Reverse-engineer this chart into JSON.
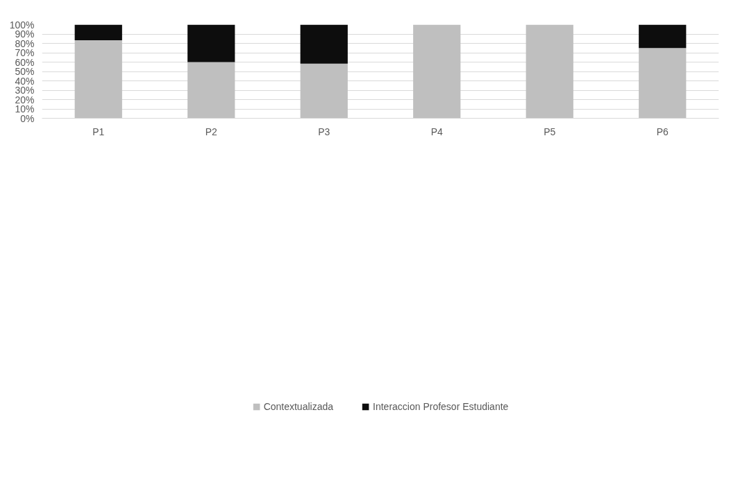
{
  "chart_data": {
    "type": "bar",
    "stacked": true,
    "categories": [
      "P1",
      "P2",
      "P3",
      "P4",
      "P5",
      "P6"
    ],
    "series": [
      {
        "name": "Contextualizada",
        "color": "#bfbfbf",
        "values": [
          83.3,
          60,
          58.3,
          100,
          100,
          75
        ]
      },
      {
        "name": "Interaccion Profesor Estudiante",
        "color": "#0d0d0d",
        "values": [
          16.7,
          40,
          41.7,
          0,
          0,
          25
        ]
      }
    ],
    "ylim": [
      0,
      100
    ],
    "yticks": [
      {
        "value": 0,
        "label": "0%"
      },
      {
        "value": 10,
        "label": "10%"
      },
      {
        "value": 20,
        "label": "20%"
      },
      {
        "value": 30,
        "label": "30%"
      },
      {
        "value": 40,
        "label": "40%"
      },
      {
        "value": 50,
        "label": "50%"
      },
      {
        "value": 60,
        "label": "60%"
      },
      {
        "value": 70,
        "label": "70%"
      },
      {
        "value": 80,
        "label": "80%"
      },
      {
        "value": 90,
        "label": "90%"
      },
      {
        "value": 100,
        "label": "100%"
      }
    ],
    "grid": "y",
    "legend": "bottom"
  }
}
